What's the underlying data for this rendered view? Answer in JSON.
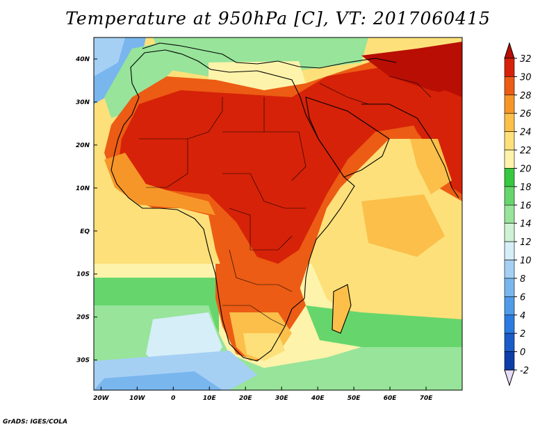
{
  "title": "Temperature at 950hPa [C], VT: 2017060415",
  "credit": "GrADS: IGES/COLA",
  "map": {
    "lon_range": [
      -22,
      80
    ],
    "lat_range": [
      -37,
      45
    ],
    "lon_ticks": [
      {
        "value": -20,
        "label": "20W"
      },
      {
        "value": -10,
        "label": "10W"
      },
      {
        "value": 0,
        "label": "0"
      },
      {
        "value": 10,
        "label": "10E"
      },
      {
        "value": 20,
        "label": "20E"
      },
      {
        "value": 30,
        "label": "30E"
      },
      {
        "value": 40,
        "label": "40E"
      },
      {
        "value": 50,
        "label": "50E"
      },
      {
        "value": 60,
        "label": "60E"
      },
      {
        "value": 70,
        "label": "70E"
      }
    ],
    "lat_ticks": [
      {
        "value": 40,
        "label": "40N"
      },
      {
        "value": 30,
        "label": "30N"
      },
      {
        "value": 20,
        "label": "20N"
      },
      {
        "value": 10,
        "label": "10N"
      },
      {
        "value": 0,
        "label": "EQ"
      },
      {
        "value": -10,
        "label": "10S"
      },
      {
        "value": -20,
        "label": "20S"
      },
      {
        "value": -30,
        "label": "30S"
      }
    ]
  },
  "colorbar": {
    "levels": [
      -2,
      0,
      2,
      4,
      6,
      8,
      10,
      12,
      14,
      16,
      18,
      20,
      22,
      24,
      26,
      28,
      30,
      32
    ],
    "colors": [
      "#0a1e8c",
      "#0d3ea8",
      "#1a5cc8",
      "#2b7be0",
      "#4f9be8",
      "#79b6ee",
      "#a5d0f4",
      "#d6eef8",
      "#cff2d4",
      "#97e49a",
      "#66d66c",
      "#36c83e",
      "#fef3aa",
      "#fde07a",
      "#fbbf4a",
      "#f79628",
      "#ec5c14",
      "#d62208",
      "#b80e04"
    ]
  }
}
